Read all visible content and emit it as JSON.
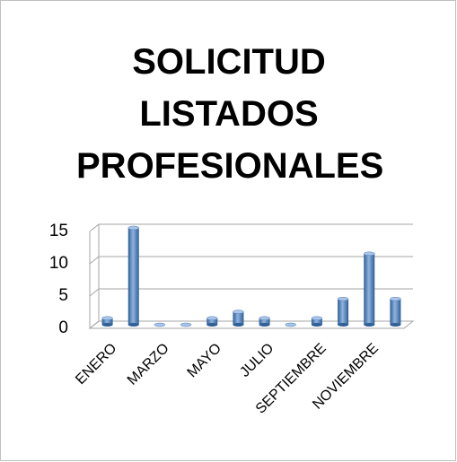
{
  "chart_data": {
    "type": "bar",
    "title": "SOLICITUD LISTADOS PROFESIONALES",
    "categories": [
      "ENERO",
      null,
      "MARZO",
      null,
      "MAYO",
      null,
      "JULIO",
      null,
      "SEPTIEMBRE",
      null,
      "NOVIEMBRE",
      null
    ],
    "values": [
      1,
      15,
      0,
      0,
      1,
      2,
      1,
      0,
      1,
      4,
      11,
      4
    ],
    "color": "#4f81bd",
    "ylim": [
      0,
      15
    ],
    "yticks": [
      0,
      5,
      10,
      15
    ],
    "grid": true
  }
}
